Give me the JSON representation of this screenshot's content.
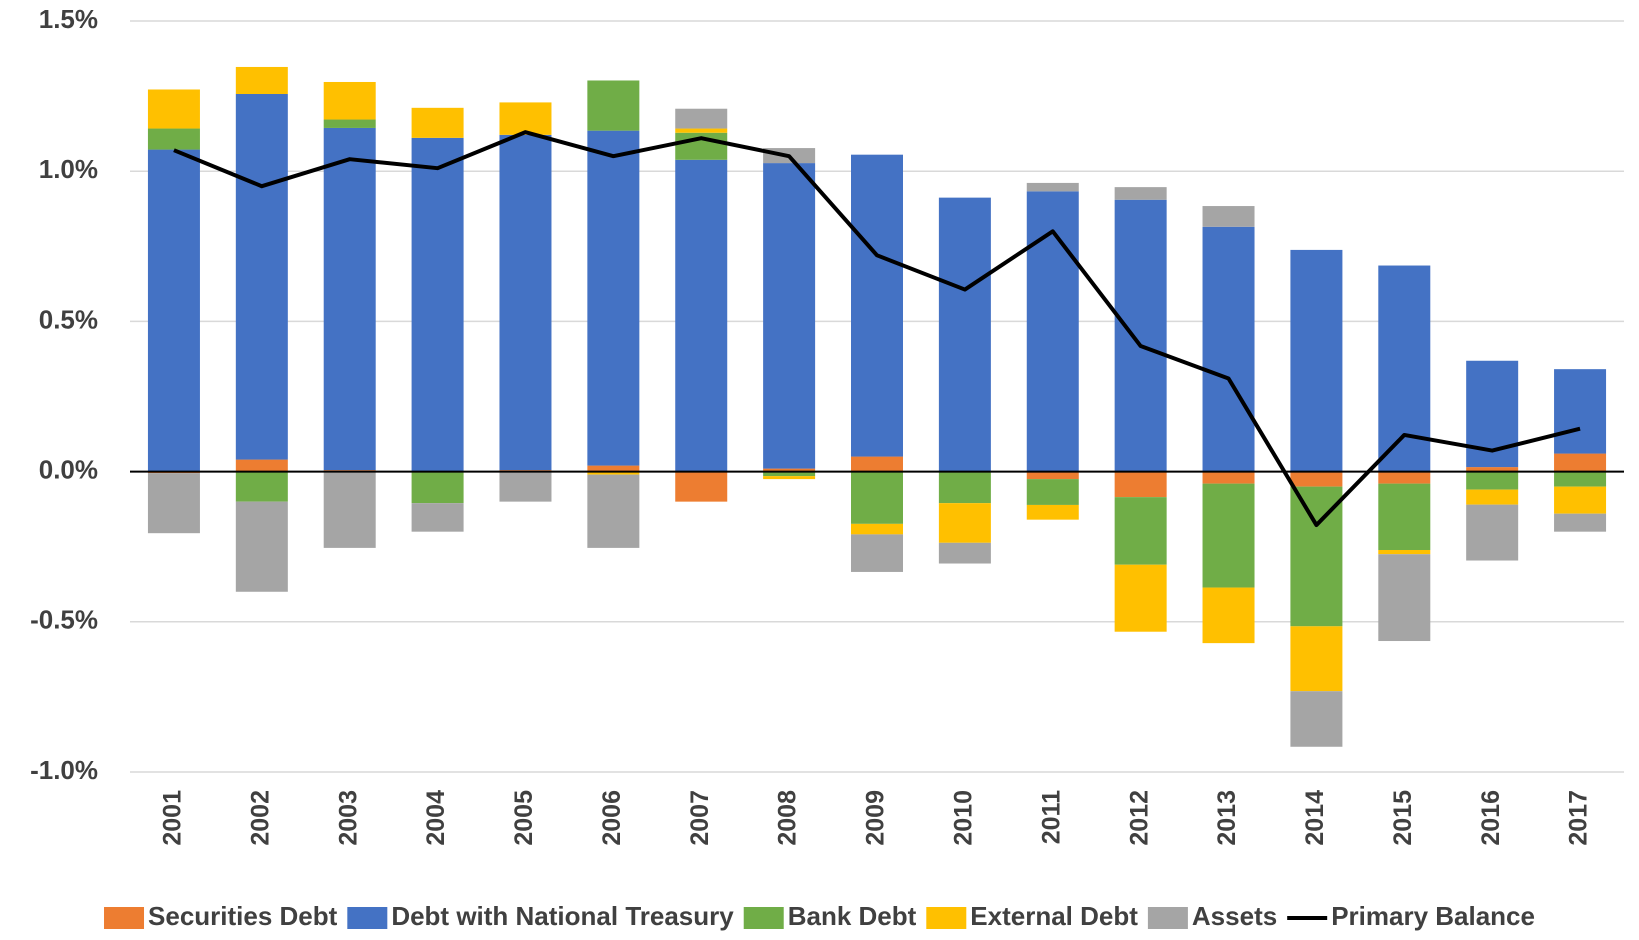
{
  "chart_data": {
    "type": "bar",
    "stacked": true,
    "categories": [
      "2001",
      "2002",
      "2003",
      "2004",
      "2005",
      "2006",
      "2007",
      "2008",
      "2009",
      "2010",
      "2011",
      "2012",
      "2013",
      "2014",
      "2015",
      "2016",
      "2017"
    ],
    "series": [
      {
        "name": "Securities Debt",
        "color": "#ED7D31",
        "values": [
          -0.005,
          0.04,
          0.005,
          0,
          0.005,
          0.02,
          -0.1,
          0.01,
          0.05,
          0,
          -0.025,
          -0.085,
          -0.04,
          -0.05,
          -0.04,
          0.015,
          0.06
        ]
      },
      {
        "name": "Debt with National Treasury",
        "color": "#4472C4",
        "values": [
          1.072,
          1.217,
          1.139,
          1.111,
          1.116,
          1.115,
          1.038,
          1.017,
          1.005,
          0.912,
          0.933,
          0.905,
          0.815,
          0.738,
          0.686,
          0.354,
          0.281
        ]
      },
      {
        "name": "Bank Debt",
        "color": "#70AD47",
        "values": [
          0.07,
          -0.1,
          0.028,
          -0.105,
          0,
          0.167,
          0.09,
          -0.015,
          -0.174,
          -0.105,
          -0.086,
          -0.225,
          -0.346,
          -0.465,
          -0.221,
          -0.06,
          -0.05
        ]
      },
      {
        "name": "External Debt",
        "color": "#FFC000",
        "values": [
          0.13,
          0.09,
          0.125,
          0.1,
          0.108,
          -0.01,
          0.014,
          -0.01,
          -0.035,
          -0.132,
          -0.049,
          -0.223,
          -0.185,
          -0.216,
          -0.014,
          -0.05,
          -0.09
        ]
      },
      {
        "name": "Assets",
        "color": "#A5A5A5",
        "values": [
          -0.2,
          -0.3,
          -0.254,
          -0.095,
          -0.1,
          -0.244,
          0.066,
          0.05,
          -0.125,
          -0.069,
          0.028,
          0.042,
          0.069,
          -0.185,
          -0.289,
          -0.186,
          -0.06
        ]
      },
      {
        "name": "Primary Balance",
        "color": "#000000",
        "type": "line",
        "values": [
          1.07,
          0.95,
          1.04,
          1.01,
          1.13,
          1.05,
          1.11,
          1.05,
          0.72,
          0.606,
          0.8,
          0.418,
          0.31,
          -0.178,
          0.122,
          0.07,
          0.143
        ]
      }
    ],
    "ylim": [
      -1.0,
      1.5
    ],
    "yticks": [
      {
        "value": -1.0,
        "label": "-1.0%"
      },
      {
        "value": -0.5,
        "label": "-0.5%"
      },
      {
        "value": 0,
        "label": "0.0%"
      },
      {
        "value": 0.5,
        "label": "0.5%"
      },
      {
        "value": 1.0,
        "label": "1.0%"
      },
      {
        "value": 1.5,
        "label": "1.5%"
      }
    ],
    "grid": true,
    "legend": "bottom"
  }
}
